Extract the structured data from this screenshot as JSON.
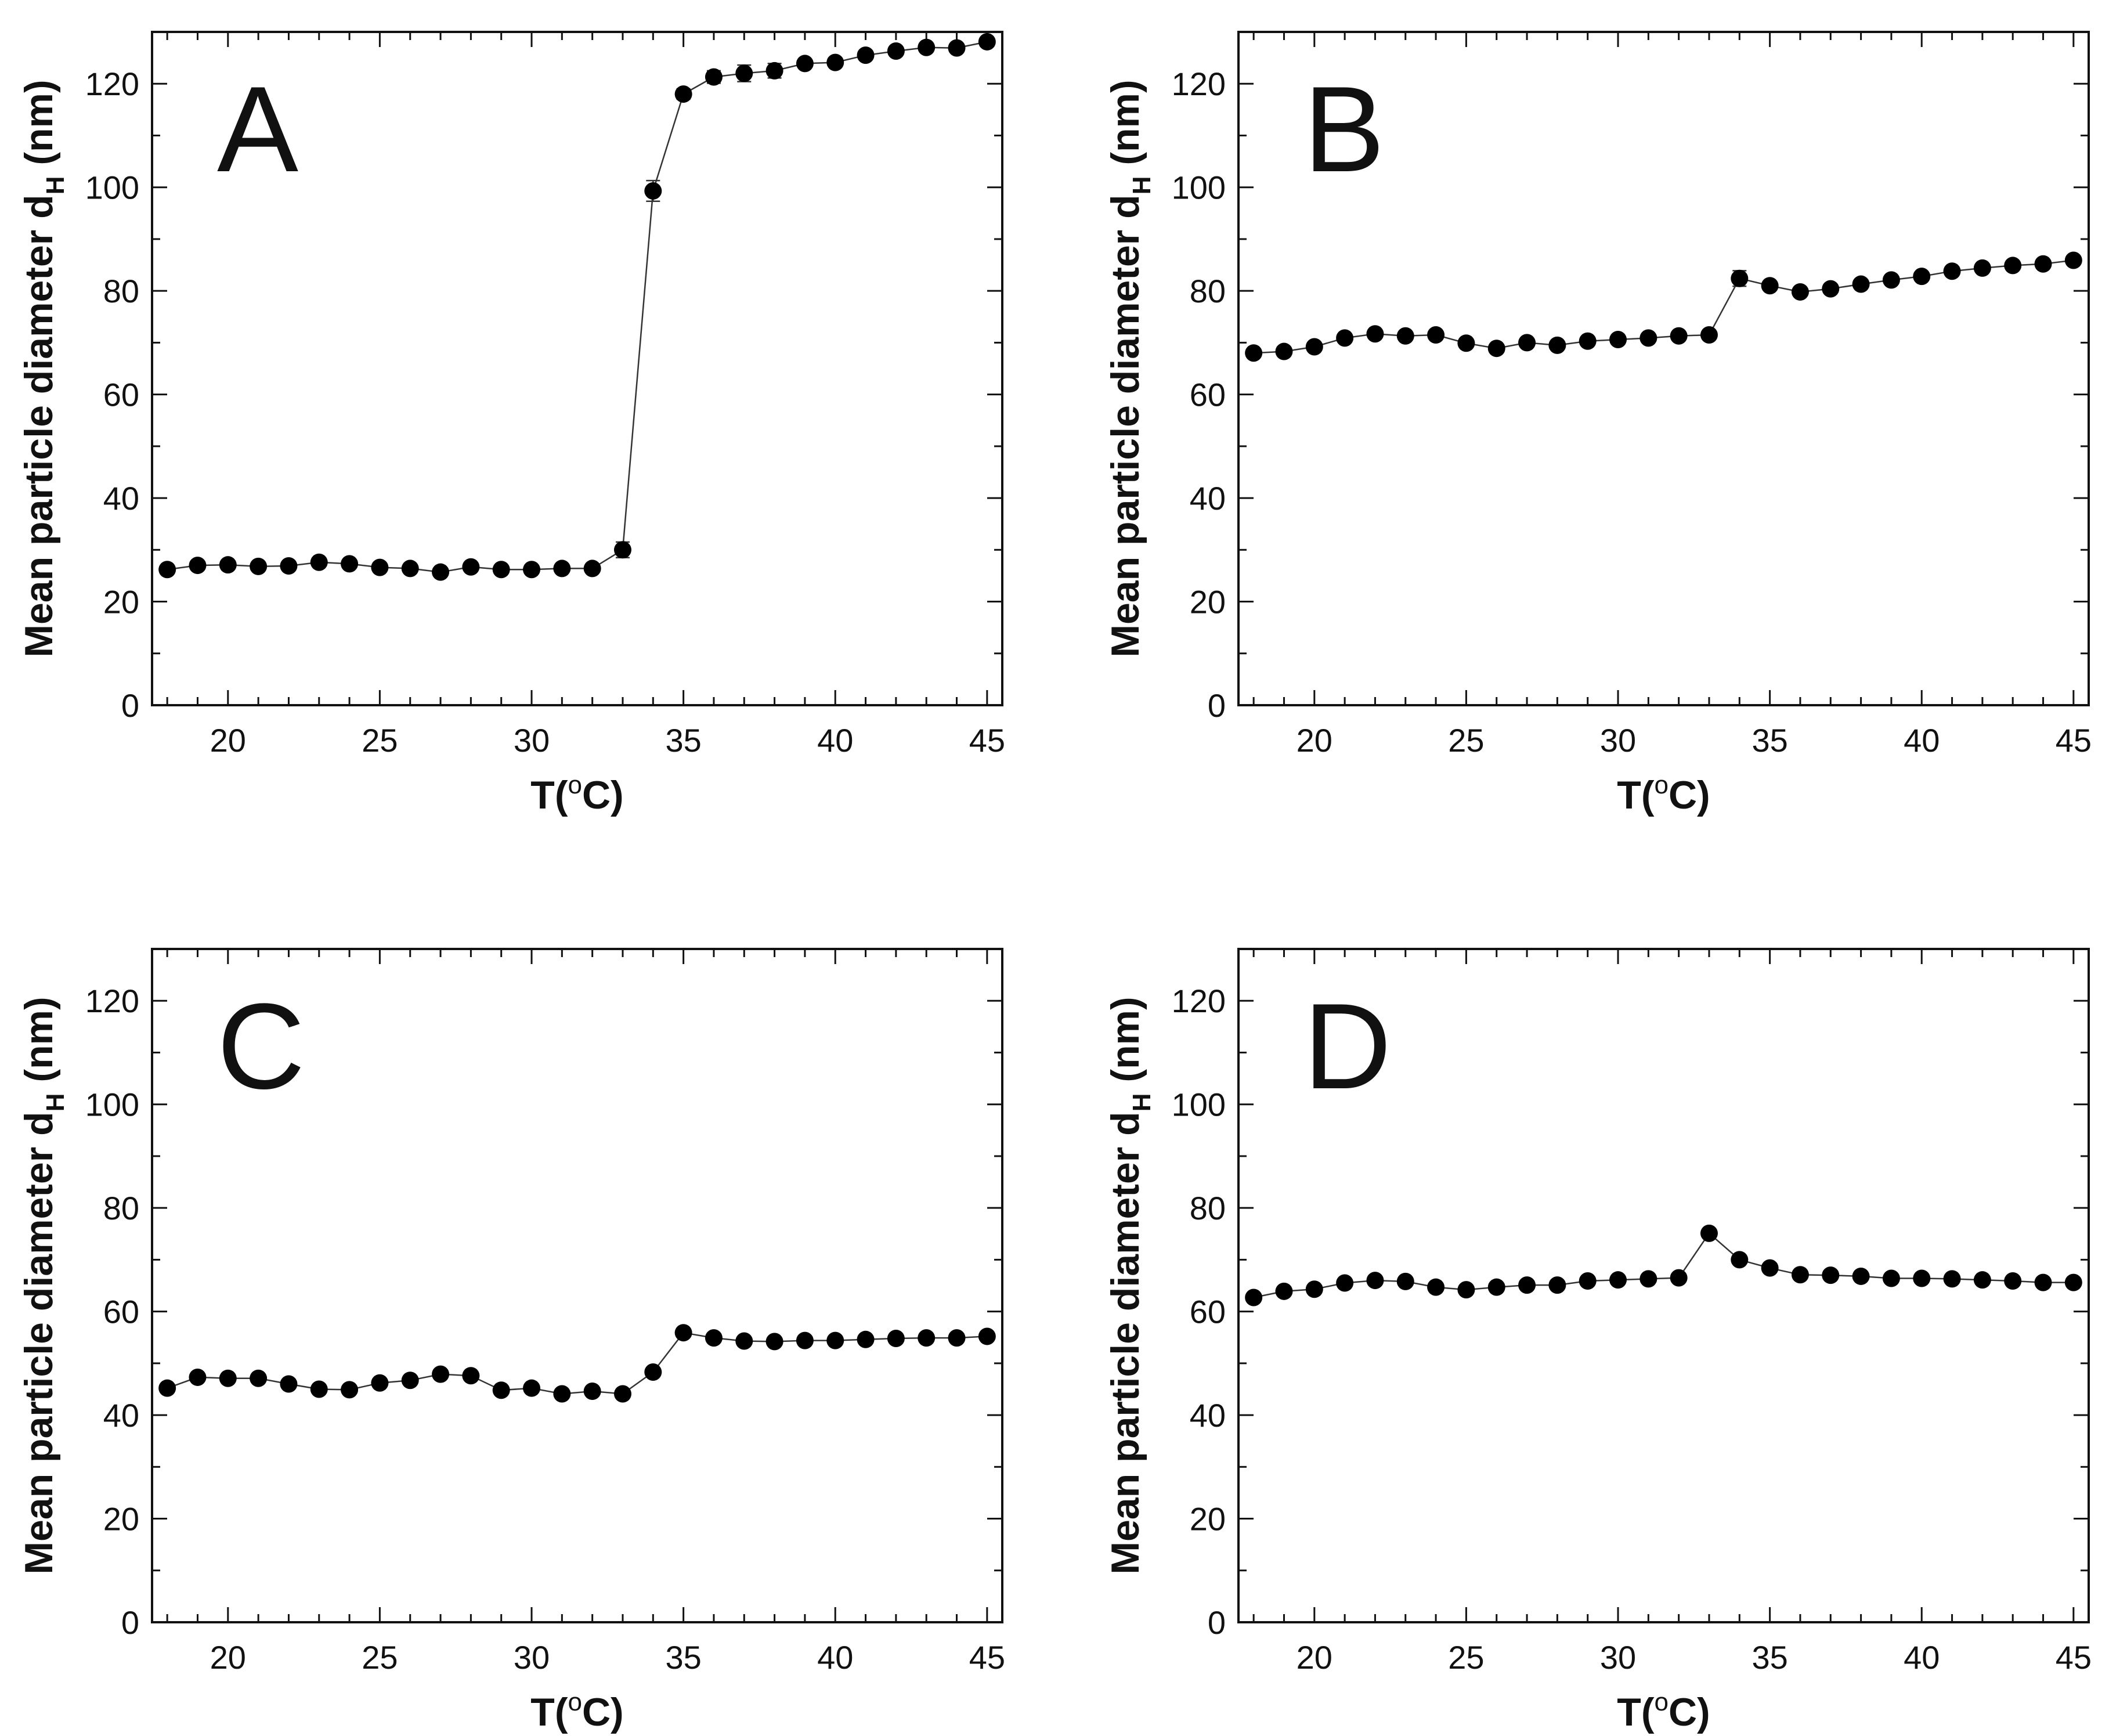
{
  "chart_data": [
    {
      "panel": "A",
      "type": "line",
      "xlabel": "T(°C)",
      "ylabel": "Mean particle diameter d_H (nm)",
      "xlim": [
        17.5,
        45.5
      ],
      "ylim": [
        0,
        130
      ],
      "xticks": [
        20,
        25,
        30,
        35,
        40,
        45
      ],
      "yticks": [
        0,
        20,
        40,
        60,
        80,
        100,
        120
      ],
      "grid": false,
      "series": [
        {
          "name": "A",
          "x": [
            18,
            19,
            20,
            21,
            22,
            23,
            24,
            25,
            26,
            27,
            28,
            29,
            30,
            31,
            32,
            33,
            34,
            35,
            36,
            37,
            38,
            39,
            40,
            41,
            42,
            43,
            44,
            45
          ],
          "y": [
            26.2,
            27.0,
            27.1,
            26.8,
            26.9,
            27.6,
            27.3,
            26.6,
            26.4,
            25.7,
            26.7,
            26.2,
            26.2,
            26.4,
            26.4,
            30.0,
            99.3,
            118.0,
            121.3,
            122.0,
            122.5,
            123.9,
            124.1,
            125.5,
            126.3,
            127.0,
            126.9,
            128.1
          ],
          "err": [
            0.5,
            0.5,
            0.5,
            0.5,
            0.5,
            0.5,
            0.5,
            0.5,
            0.5,
            0.5,
            0.5,
            0.5,
            0.5,
            0.5,
            0.5,
            1.5,
            2.0,
            1.0,
            1.2,
            1.6,
            1.4,
            0.8,
            0.8,
            0.8,
            0.8,
            0.8,
            0.8,
            0.8
          ]
        }
      ]
    },
    {
      "panel": "B",
      "type": "line",
      "xlabel": "T(°C)",
      "ylabel": "Mean particle diameter d_H (nm)",
      "xlim": [
        17.5,
        45.5
      ],
      "ylim": [
        0,
        130
      ],
      "xticks": [
        20,
        25,
        30,
        35,
        40,
        45
      ],
      "yticks": [
        0,
        20,
        40,
        60,
        80,
        100,
        120
      ],
      "grid": false,
      "series": [
        {
          "name": "B",
          "x": [
            18,
            19,
            20,
            21,
            22,
            23,
            24,
            25,
            26,
            27,
            28,
            29,
            30,
            31,
            32,
            33,
            34,
            35,
            36,
            37,
            38,
            39,
            40,
            41,
            42,
            43,
            44,
            45
          ],
          "y": [
            68.0,
            68.3,
            69.2,
            70.9,
            71.7,
            71.3,
            71.5,
            69.9,
            68.9,
            70.0,
            69.5,
            70.3,
            70.6,
            70.9,
            71.3,
            71.5,
            82.4,
            81.0,
            79.8,
            80.4,
            81.3,
            82.1,
            82.8,
            83.8,
            84.4,
            84.9,
            85.2,
            85.9
          ],
          "err": [
            0.5,
            0.5,
            0.5,
            0.5,
            0.5,
            0.5,
            0.5,
            0.5,
            0.5,
            0.5,
            0.5,
            0.5,
            0.5,
            0.5,
            0.5,
            0.5,
            1.5,
            0.5,
            0.5,
            0.5,
            0.5,
            0.5,
            0.5,
            0.5,
            0.5,
            0.5,
            0.5,
            0.5
          ]
        }
      ]
    },
    {
      "panel": "C",
      "type": "line",
      "xlabel": "T(°C)",
      "ylabel": "Mean particle diameter d_H (nm)",
      "xlim": [
        17.5,
        45.5
      ],
      "ylim": [
        0,
        130
      ],
      "xticks": [
        20,
        25,
        30,
        35,
        40,
        45
      ],
      "yticks": [
        0,
        20,
        40,
        60,
        80,
        100,
        120
      ],
      "grid": false,
      "series": [
        {
          "name": "C",
          "x": [
            18,
            19,
            20,
            21,
            22,
            23,
            24,
            25,
            26,
            27,
            28,
            29,
            30,
            31,
            32,
            33,
            34,
            35,
            36,
            37,
            38,
            39,
            40,
            41,
            42,
            43,
            44,
            45
          ],
          "y": [
            45.2,
            47.3,
            47.1,
            47.1,
            46.0,
            45.0,
            44.9,
            46.2,
            46.7,
            47.9,
            47.6,
            44.8,
            45.2,
            44.1,
            44.6,
            44.1,
            48.3,
            55.9,
            54.9,
            54.3,
            54.2,
            54.4,
            54.4,
            54.6,
            54.8,
            54.9,
            54.9,
            55.2
          ],
          "err": [
            0.5,
            0.5,
            0.5,
            0.5,
            0.5,
            0.5,
            0.5,
            0.5,
            0.5,
            0.5,
            0.5,
            0.5,
            0.5,
            0.5,
            0.5,
            0.5,
            0.5,
            0.5,
            0.5,
            0.5,
            0.5,
            0.5,
            0.5,
            0.5,
            0.5,
            0.5,
            0.5,
            0.5
          ]
        }
      ]
    },
    {
      "panel": "D",
      "type": "line",
      "xlabel": "T(°C)",
      "ylabel": "Mean particle diameter d_H (nm)",
      "xlim": [
        17.5,
        45.5
      ],
      "ylim": [
        0,
        130
      ],
      "xticks": [
        20,
        25,
        30,
        35,
        40,
        45
      ],
      "yticks": [
        0,
        20,
        40,
        60,
        80,
        100,
        120
      ],
      "grid": false,
      "series": [
        {
          "name": "D",
          "x": [
            18,
            19,
            20,
            21,
            22,
            23,
            24,
            25,
            26,
            27,
            28,
            29,
            30,
            31,
            32,
            33,
            34,
            35,
            36,
            37,
            38,
            39,
            40,
            41,
            42,
            43,
            44,
            45
          ],
          "y": [
            62.7,
            63.9,
            64.3,
            65.5,
            66.0,
            65.8,
            64.7,
            64.2,
            64.7,
            65.1,
            65.1,
            65.9,
            66.1,
            66.3,
            66.5,
            75.1,
            70.0,
            68.4,
            67.1,
            67.0,
            66.8,
            66.4,
            66.4,
            66.3,
            66.1,
            65.9,
            65.6,
            65.6
          ],
          "err": [
            0.5,
            0.5,
            0.5,
            0.5,
            0.5,
            0.5,
            0.5,
            0.5,
            0.5,
            0.5,
            0.5,
            0.5,
            0.5,
            0.5,
            0.5,
            0.5,
            0.5,
            0.5,
            0.5,
            0.5,
            0.5,
            0.5,
            0.5,
            0.5,
            0.5,
            0.5,
            0.5,
            0.5
          ]
        }
      ]
    }
  ],
  "labels": {
    "ylabel_main": "Mean particle diameter d",
    "ylabel_sub": "H",
    "ylabel_unit": " (nm)",
    "xlabel_main": "T(",
    "xlabel_sup": "o",
    "xlabel_unit": "C)"
  },
  "colors": {
    "marker": "#000000",
    "line": "#333333",
    "axis": "#111111"
  }
}
